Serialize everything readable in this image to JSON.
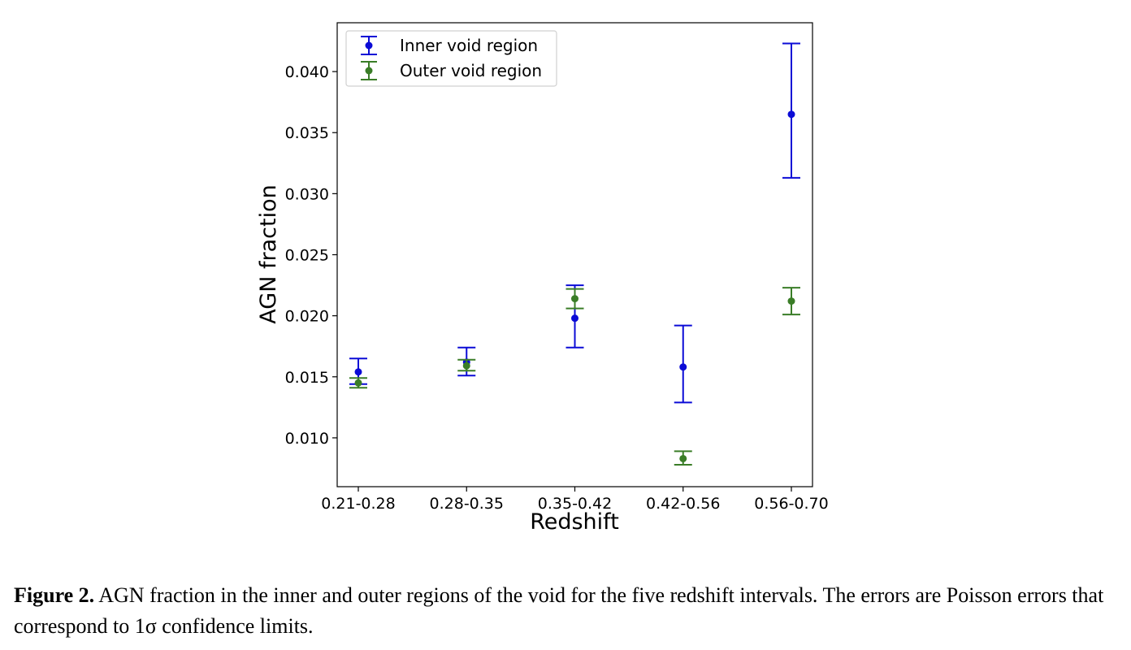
{
  "chart_data": {
    "type": "scatter",
    "subtype": "errorbar",
    "xlabel": "Redshift",
    "ylabel": "AGN fraction",
    "categories": [
      "0.21-0.28",
      "0.28-0.35",
      "0.35-0.42",
      "0.42-0.56",
      "0.56-0.70"
    ],
    "ylim": [
      0.006,
      0.044
    ],
    "yticks": [
      "0.010",
      "0.015",
      "0.020",
      "0.025",
      "0.030",
      "0.035",
      "0.040"
    ],
    "grid": false,
    "legend_position": "top-left",
    "series": [
      {
        "name": "Inner void region",
        "color": "#0b0bd6",
        "values": [
          0.0154,
          0.0162,
          0.0198,
          0.0158,
          0.0365
        ],
        "err_low": [
          0.001,
          0.0011,
          0.0024,
          0.0029,
          0.0052
        ],
        "err_high": [
          0.0011,
          0.0012,
          0.0027,
          0.0034,
          0.0058
        ]
      },
      {
        "name": "Outer void region",
        "color": "#3a7d27",
        "values": [
          0.0145,
          0.0159,
          0.0214,
          0.0083,
          0.0212
        ],
        "err_low": [
          0.0004,
          0.0004,
          0.0008,
          0.0005,
          0.0011
        ],
        "err_high": [
          0.0004,
          0.0005,
          0.0008,
          0.0006,
          0.0011
        ]
      }
    ]
  },
  "caption": {
    "label": "Figure 2.",
    "text": " AGN fraction in the inner and outer regions of the void for the five redshift intervals. The errors are Poisson errors that correspond to 1σ confidence limits."
  }
}
